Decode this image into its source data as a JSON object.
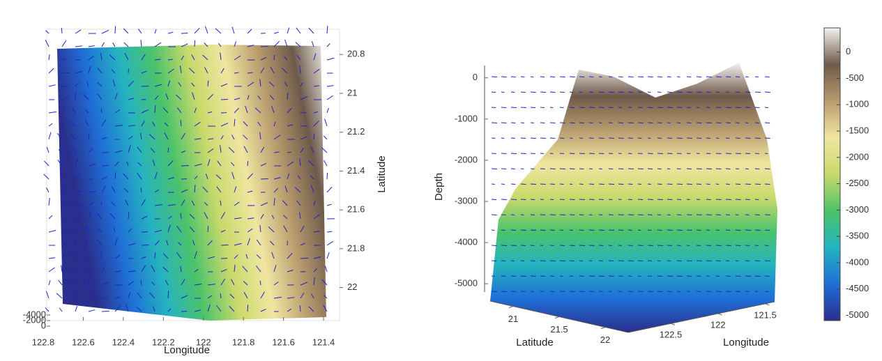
{
  "chart_data": [
    {
      "type": "surface",
      "xlabel": "Longitude",
      "ylabel": "Latitude",
      "xlim": [
        122.8,
        121.32
      ],
      "xticks": [
        122.8,
        122.6,
        122.4,
        122.2,
        122,
        121.8,
        121.6,
        121.4
      ],
      "ylim": [
        20.67,
        22.17
      ],
      "yticks": [
        20.8,
        21,
        21.2,
        21.4,
        21.6,
        21.8,
        22
      ],
      "zlim": [
        -4000,
        0
      ],
      "zticks": [
        -4000,
        -2000,
        0
      ]
    },
    {
      "type": "surface3d",
      "xlabel": "Latitude",
      "ylabel": "Longitude",
      "zlabel": "Depth",
      "xlim": [
        20.75,
        22.25
      ],
      "xticks": [
        21,
        21.5,
        22
      ],
      "ylim": [
        122.95,
        121.4
      ],
      "yticks": [
        122.5,
        122,
        121.5
      ],
      "zlim": [
        -5200,
        300
      ],
      "zticks": [
        0,
        -1000,
        -2000,
        -3000,
        -4000,
        -5000
      ]
    },
    {
      "type": "colorbar",
      "ylim": [
        -5100,
        460
      ],
      "yticks": [
        0,
        -500,
        -1000,
        -1500,
        -2000,
        -2500,
        -3000,
        -3500,
        -4000,
        -4500,
        -5000
      ],
      "colormap": [
        "#2a2e8c",
        "#1f6fd6",
        "#25b3c0",
        "#4cc36a",
        "#c9d96b",
        "#f0e6a0",
        "#b89c6e",
        "#6e5a4a",
        "#f5f2f0"
      ]
    }
  ]
}
